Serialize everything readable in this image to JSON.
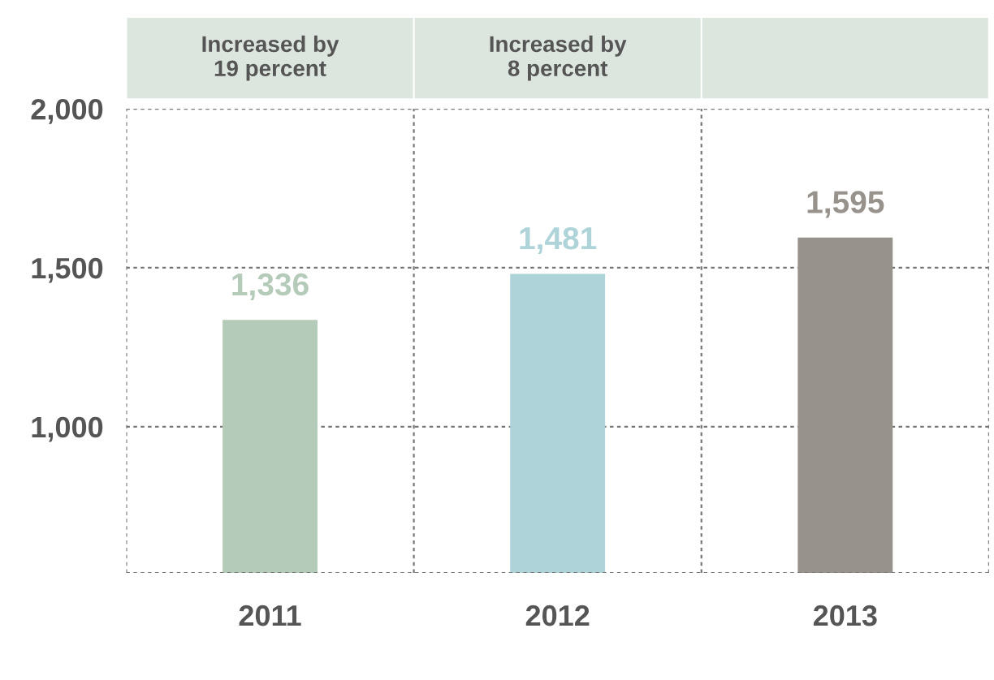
{
  "chart_data": {
    "type": "bar",
    "categories": [
      "2011",
      "2012",
      "2013"
    ],
    "values": [
      1336,
      1481,
      1595
    ],
    "colors": [
      "#b5cbb9",
      "#aed3d9",
      "#98928c"
    ],
    "value_labels": [
      "1,336",
      "1,481",
      "1,595"
    ],
    "annotations": [
      "Increased by\n19 percent",
      "Increased by\n8 percent"
    ],
    "ylim": [
      540,
      2000
    ],
    "yticks": [
      {
        "value": 1000,
        "label": "1,000"
      },
      {
        "value": 1500,
        "label": "1,500"
      },
      {
        "value": 2000,
        "label": "2,000"
      }
    ],
    "grid": true
  }
}
